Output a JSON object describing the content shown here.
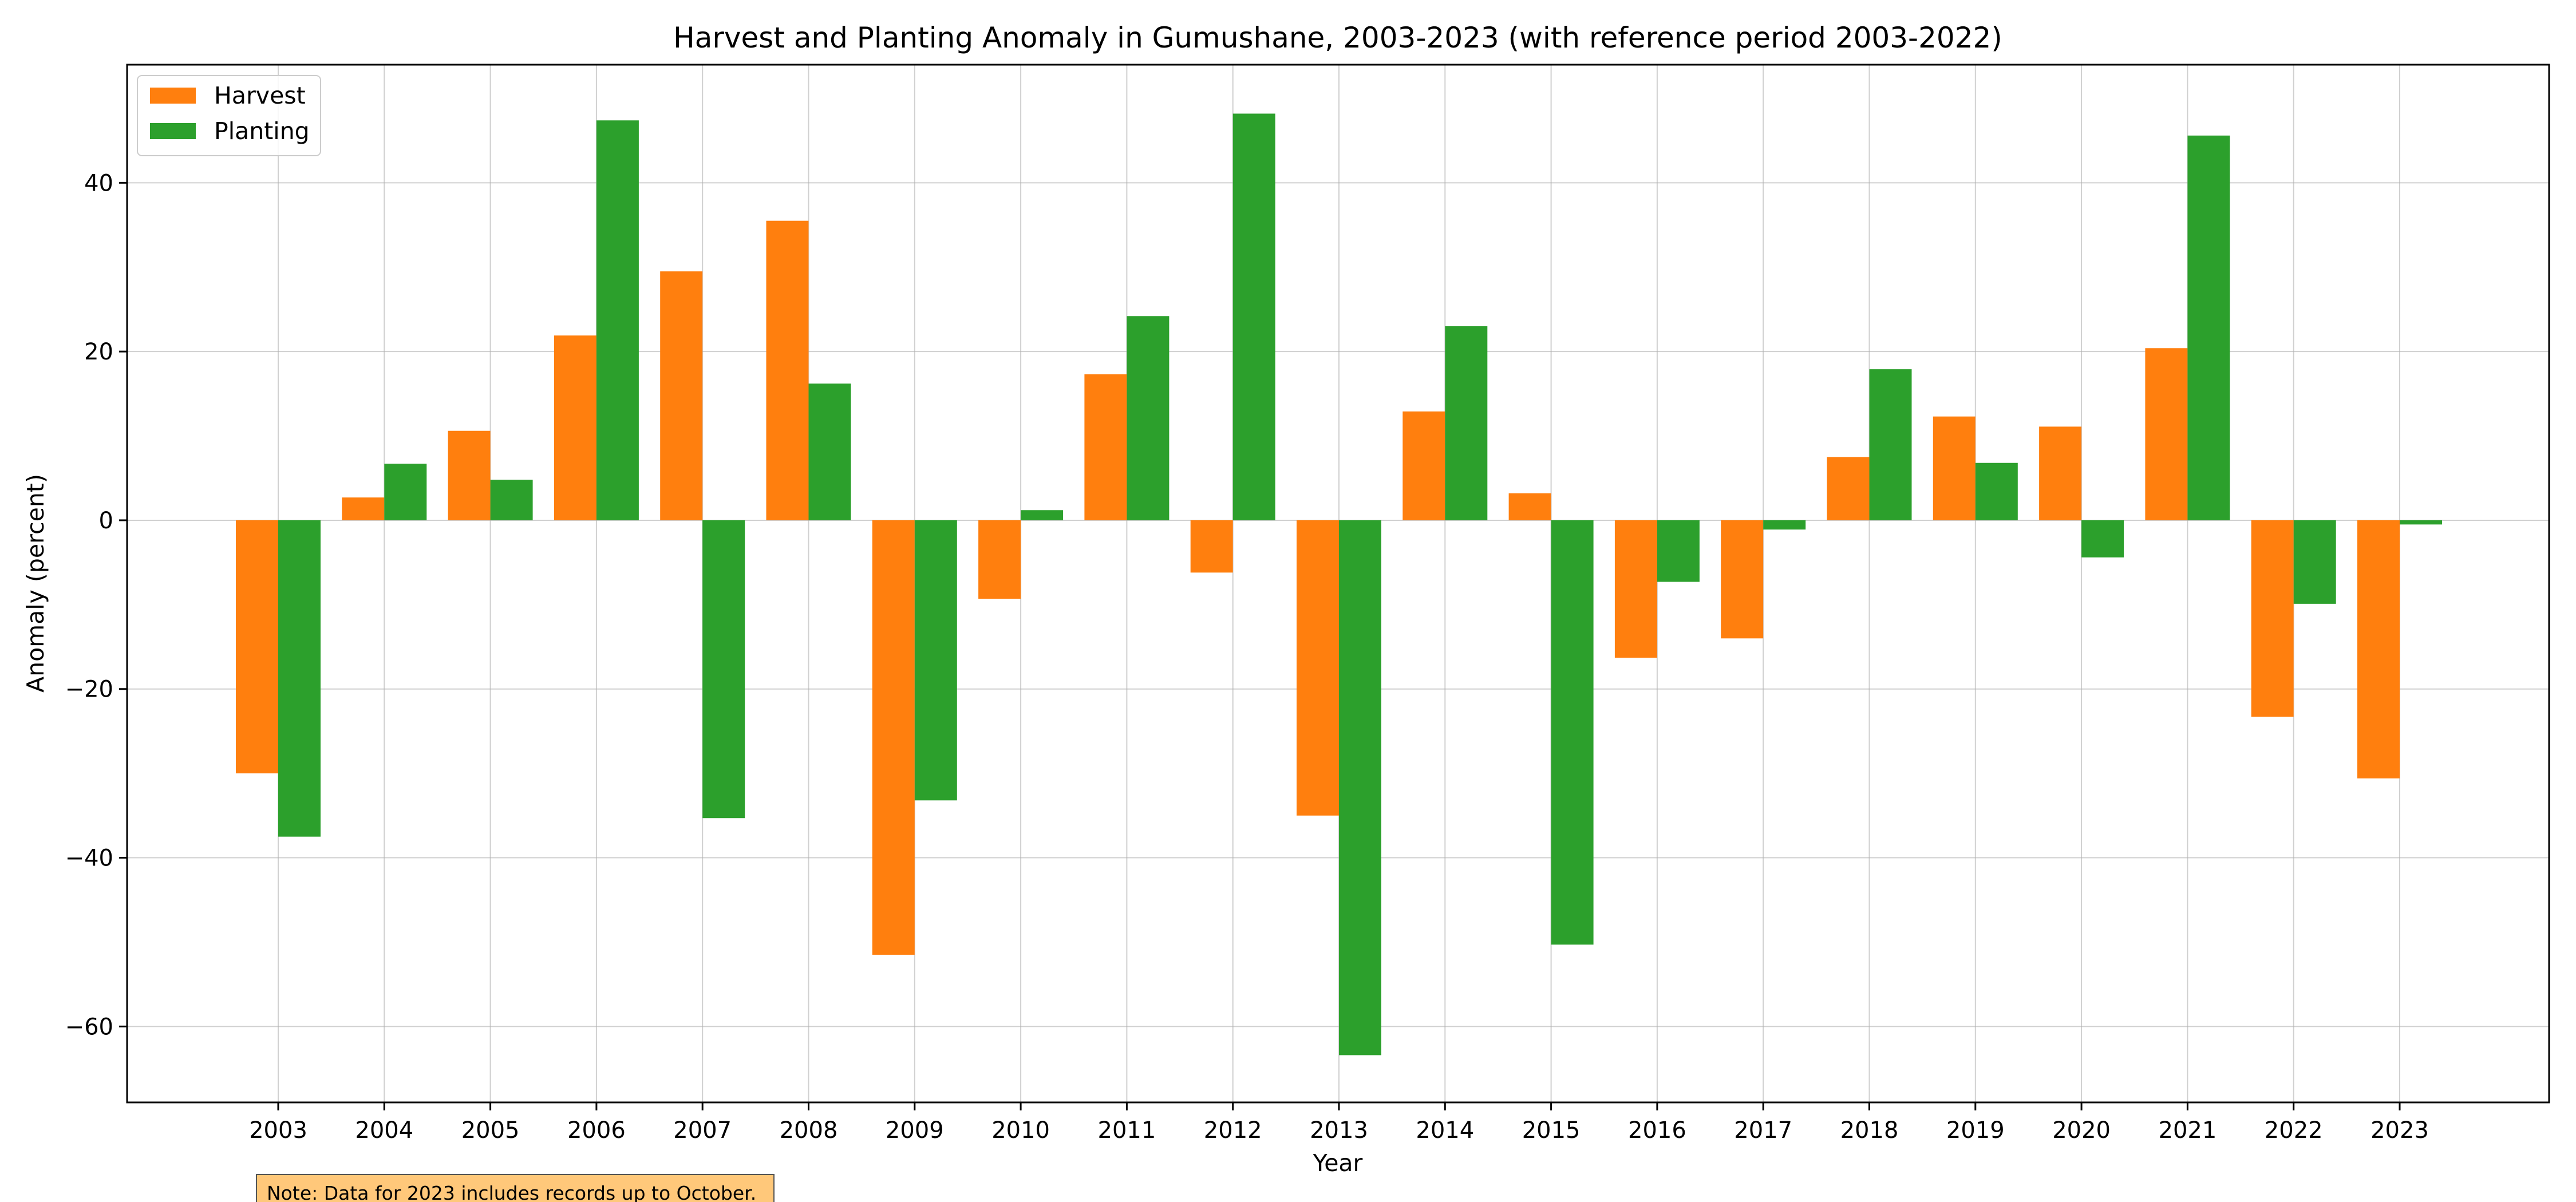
{
  "chart_data": {
    "type": "bar",
    "title": "Harvest and Planting Anomaly in Gumushane, 2003-2023 (with reference period 2003-2022)",
    "xlabel": "Year",
    "ylabel": "Anomaly (percent)",
    "ylim": [
      -69,
      54
    ],
    "yticks": [
      -60,
      -40,
      -20,
      0,
      20,
      40
    ],
    "grid": true,
    "legend_position": "top-left",
    "categories": [
      "2003",
      "2004",
      "2005",
      "2006",
      "2007",
      "2008",
      "2009",
      "2010",
      "2011",
      "2012",
      "2013",
      "2014",
      "2015",
      "2016",
      "2017",
      "2018",
      "2019",
      "2020",
      "2021",
      "2022",
      "2023"
    ],
    "series": [
      {
        "name": "Harvest",
        "color": "#ff7f0e",
        "values": [
          -30.0,
          2.7,
          10.6,
          21.9,
          29.5,
          35.5,
          -51.5,
          -9.3,
          17.3,
          -6.2,
          -35.0,
          12.9,
          3.2,
          -16.3,
          -14.0,
          7.5,
          12.3,
          11.1,
          20.4,
          -23.3,
          -30.6
        ]
      },
      {
        "name": "Planting",
        "color": "#2ca02c",
        "values": [
          -37.5,
          6.7,
          4.8,
          47.4,
          -35.3,
          16.2,
          -33.2,
          1.2,
          24.2,
          48.2,
          -63.4,
          23.0,
          -50.3,
          -7.3,
          -1.1,
          17.9,
          6.8,
          -4.4,
          45.6,
          -9.9,
          -0.5
        ]
      }
    ],
    "note": "Note: Data for 2023 includes records up to October."
  }
}
